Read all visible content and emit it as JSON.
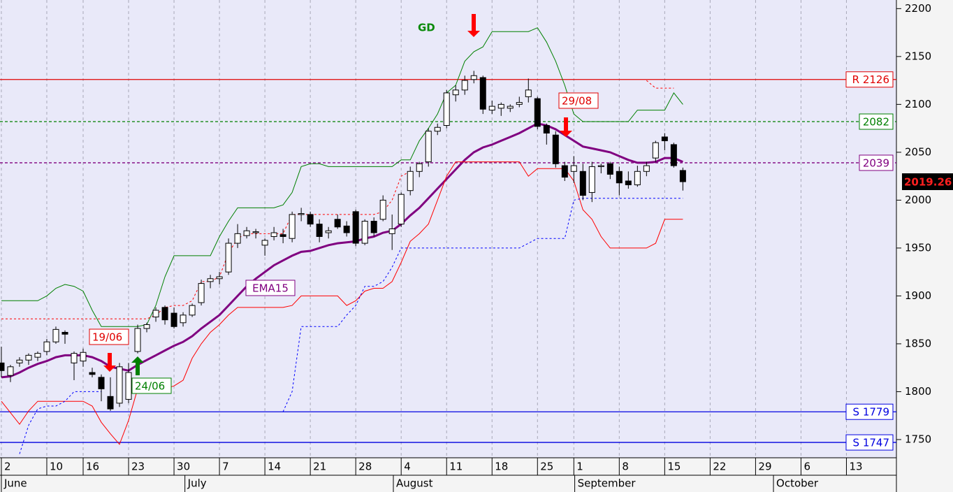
{
  "chart_data": {
    "type": "candlestick",
    "open": [
      1830,
      1817,
      1830,
      1833,
      1836,
      1842,
      1852,
      1862,
      1830,
      1832,
      1820,
      1815,
      1795,
      1788,
      1792,
      1842,
      1866,
      1878,
      1888,
      1882,
      1872,
      1880,
      1893,
      1915,
      1918,
      1925,
      1955,
      1963,
      1966,
      1953,
      1962,
      1964,
      1960,
      1985,
      1985,
      1975,
      1966,
      1980,
      1973,
      1988,
      1955,
      1978,
      1980,
      1965,
      1975,
      2010,
      2030,
      2040,
      2072,
      2078,
      2110,
      2115,
      2126,
      2128,
      2094,
      2096,
      2096,
      2100,
      2108,
      2106,
      2078,
      2068,
      2036,
      2030,
      2030,
      2008,
      2035,
      2038,
      2030,
      2020,
      2016,
      2030,
      2044,
      2066,
      2058,
      2031
    ],
    "high": [
      1847,
      1828,
      1836,
      1840,
      1842,
      1855,
      1868,
      1864,
      1842,
      1845,
      1825,
      1818,
      1815,
      1830,
      1830,
      1870,
      1872,
      1888,
      1890,
      1888,
      1883,
      1892,
      1917,
      1922,
      1925,
      1960,
      1975,
      1972,
      1970,
      1960,
      1972,
      1970,
      1988,
      1992,
      1988,
      1980,
      1972,
      1985,
      1978,
      1990,
      1980,
      1982,
      2005,
      1985,
      2008,
      2035,
      2040,
      2075,
      2080,
      2115,
      2120,
      2130,
      2135,
      2130,
      2104,
      2102,
      2100,
      2108,
      2127,
      2108,
      2080,
      2072,
      2040,
      2046,
      2038,
      2040,
      2038,
      2040,
      2035,
      2030,
      2036,
      2040,
      2062,
      2070,
      2060,
      2034
    ],
    "low": [
      1815,
      1810,
      1826,
      1828,
      1832,
      1838,
      1850,
      1850,
      1812,
      1826,
      1815,
      1790,
      1780,
      1784,
      1788,
      1840,
      1862,
      1873,
      1870,
      1866,
      1868,
      1878,
      1890,
      1908,
      1912,
      1922,
      1950,
      1960,
      1960,
      1942,
      1958,
      1955,
      1956,
      1978,
      1972,
      1956,
      1960,
      1970,
      1962,
      1952,
      1953,
      1962,
      1978,
      1948,
      1972,
      2005,
      2024,
      2035,
      2068,
      2075,
      2103,
      2110,
      2122,
      2090,
      2090,
      2088,
      2092,
      2097,
      2102,
      2074,
      2058,
      2034,
      2020,
      2018,
      2000,
      1998,
      2028,
      2022,
      2005,
      2012,
      2014,
      2025,
      2040,
      2052,
      2034,
      2010
    ],
    "close": [
      1822,
      1826,
      1833,
      1838,
      1840,
      1852,
      1865,
      1860,
      1840,
      1841,
      1818,
      1803,
      1782,
      1826,
      1820,
      1866,
      1870,
      1885,
      1875,
      1868,
      1880,
      1890,
      1913,
      1918,
      1920,
      1955,
      1965,
      1968,
      1967,
      1958,
      1966,
      1962,
      1985,
      1986,
      1975,
      1962,
      1968,
      1972,
      1966,
      1955,
      1978,
      1966,
      2000,
      1970,
      2006,
      2030,
      2038,
      2072,
      2076,
      2112,
      2115,
      2125,
      2130,
      2095,
      2098,
      2100,
      2098,
      2102,
      2115,
      2077,
      2070,
      2038,
      2024,
      2036,
      2005,
      2035,
      2036,
      2027,
      2018,
      2016,
      2030,
      2036,
      2060,
      2062,
      2036,
      2019.26
    ],
    "series": [
      {
        "name": "EMA15",
        "color": "#800080",
        "style": "solid",
        "width": 3,
        "values": [
          1815,
          1816,
          1820,
          1825,
          1829,
          1832,
          1836,
          1838,
          1838,
          1838,
          1836,
          1832,
          1826,
          1824,
          1822,
          1828,
          1833,
          1838,
          1843,
          1848,
          1852,
          1858,
          1866,
          1873,
          1880,
          1890,
          1900,
          1910,
          1918,
          1925,
          1932,
          1937,
          1942,
          1946,
          1947,
          1950,
          1953,
          1955,
          1956,
          1957,
          1960,
          1962,
          1966,
          1968,
          1975,
          1984,
          1992,
          2002,
          2012,
          2022,
          2032,
          2042,
          2050,
          2055,
          2058,
          2062,
          2066,
          2070,
          2075,
          2080,
          2078,
          2074,
          2068,
          2062,
          2056,
          2054,
          2052,
          2050,
          2046,
          2042,
          2039,
          2039,
          2040,
          2044,
          2044,
          2040
        ]
      },
      {
        "color": "#008000",
        "style": "solid",
        "width": 1,
        "values": [
          1895,
          1895,
          1895,
          1895,
          1895,
          1900,
          1908,
          1912,
          1910,
          1905,
          1885,
          1868,
          1868,
          1868,
          1868,
          1868,
          1870,
          1890,
          1920,
          1942,
          1942,
          1942,
          1942,
          1942,
          1962,
          1978,
          1992,
          1992,
          1992,
          1992,
          1992,
          1995,
          2008,
          2035,
          2038,
          2038,
          2035,
          2035,
          2035,
          2035,
          2035,
          2035,
          2035,
          2035,
          2042,
          2042,
          2062,
          2075,
          2090,
          2112,
          2120,
          2145,
          2155,
          2160,
          2176,
          2176,
          2176,
          2176,
          2176,
          2180,
          2165,
          2145,
          2120,
          2090,
          2082,
          2082,
          2082,
          2082,
          2082,
          2082,
          2094,
          2094,
          2094,
          2094,
          2112,
          2100
        ]
      },
      {
        "color": "#ff0000",
        "style": "solid",
        "width": 1,
        "values": [
          1790,
          1778,
          1766,
          1780,
          1790,
          1790,
          1790,
          1790,
          1790,
          1790,
          1785,
          1768,
          1756,
          1745,
          1770,
          1803,
          1803,
          1803,
          1803,
          1806,
          1812,
          1835,
          1850,
          1862,
          1870,
          1880,
          1888,
          1888,
          1888,
          1888,
          1888,
          1888,
          1890,
          1900,
          1900,
          1900,
          1900,
          1900,
          1890,
          1895,
          1905,
          1908,
          1908,
          1915,
          1935,
          1957,
          1965,
          1975,
          2000,
          2025,
          2040,
          2040,
          2040,
          2040,
          2040,
          2040,
          2040,
          2040,
          2025,
          2033,
          2033,
          2033,
          2033,
          2020,
          1990,
          1980,
          1962,
          1950,
          1950,
          1950,
          1950,
          1950,
          1955,
          1980,
          1980,
          1980
        ]
      },
      {
        "color": "#ff0000",
        "style": "dashed",
        "width": 1,
        "values": [
          1876,
          1876,
          1876,
          1876,
          1876,
          1876,
          1876,
          1876,
          1876,
          1876,
          1876,
          1876,
          1876,
          1876,
          1876,
          1876,
          1876,
          1880,
          1888,
          1890,
          1890,
          1895,
          1915,
          1915,
          1920,
          1945,
          1960,
          1965,
          1965,
          1965,
          1965,
          1965,
          1985,
          1985,
          1985,
          1985,
          1985,
          1985,
          1985,
          1985,
          1985,
          1985,
          1988,
          2000,
          2025,
          2030,
          null,
          null,
          null,
          null,
          null,
          null,
          null,
          null,
          null,
          null,
          null,
          null,
          null,
          null,
          null,
          null,
          null,
          null,
          null,
          null,
          null,
          null,
          null,
          null,
          null,
          2125,
          2117,
          2117,
          2117,
          null
        ]
      },
      {
        "color": "#0000ff",
        "style": "dashed",
        "width": 1,
        "values": [
          null,
          null,
          1735,
          1765,
          1782,
          1785,
          1785,
          1790,
          1800,
          1800,
          1800,
          1800,
          null,
          null,
          null,
          null,
          null,
          null,
          null,
          null,
          null,
          null,
          null,
          null,
          null,
          null,
          null,
          null,
          null,
          null,
          null,
          1779,
          1800,
          1868,
          1868,
          1868,
          1868,
          1868,
          1880,
          1890,
          1910,
          1910,
          1915,
          1930,
          1950,
          1950,
          1950,
          1950,
          1950,
          1950,
          1950,
          1950,
          1950,
          1950,
          1950,
          1950,
          1950,
          1950,
          1955,
          1960,
          1960,
          1960,
          1960,
          2000,
          2002,
          2002,
          2002,
          2002,
          2002,
          2002,
          2002,
          2002,
          2002,
          2002,
          2002,
          2002
        ]
      }
    ],
    "levels": [
      {
        "value": 2126,
        "label": "R 2126",
        "color": "#e00000",
        "style": "solid"
      },
      {
        "value": 2082,
        "label": "2082",
        "color": "#008000",
        "style": "dashed"
      },
      {
        "value": 2039,
        "label": "2039",
        "color": "#800080",
        "style": "dashed"
      },
      {
        "value": 1779,
        "label": "S 1779",
        "color": "#0000e0",
        "style": "solid"
      },
      {
        "value": 1747,
        "label": "S 1747",
        "color": "#0000e0",
        "style": "solid"
      }
    ],
    "annotations": [
      "GD",
      "19/06",
      "24/06",
      "29/08"
    ],
    "ylim": [
      1731,
      2209
    ],
    "yticks": [
      1750,
      1800,
      1850,
      1900,
      1950,
      2000,
      2050,
      2100,
      2150,
      2200
    ],
    "xlim": [
      -0.15,
      98.5
    ],
    "xticks": [
      {
        "value": 0,
        "label": "2"
      },
      {
        "value": 5,
        "label": "10"
      },
      {
        "value": 9,
        "label": "16"
      },
      {
        "value": 14,
        "label": "23"
      },
      {
        "value": 19,
        "label": "30"
      },
      {
        "value": 24,
        "label": "7"
      },
      {
        "value": 29,
        "label": "14"
      },
      {
        "value": 34,
        "label": "21"
      },
      {
        "value": 39,
        "label": "28"
      },
      {
        "value": 44,
        "label": "4"
      },
      {
        "value": 49,
        "label": "11"
      },
      {
        "value": 54,
        "label": "18"
      },
      {
        "value": 59,
        "label": "25"
      },
      {
        "value": 63,
        "label": "1"
      },
      {
        "value": 68,
        "label": "8"
      },
      {
        "value": 73,
        "label": "15"
      },
      {
        "value": 78,
        "label": "22"
      },
      {
        "value": 83,
        "label": "29"
      },
      {
        "value": 88,
        "label": "6"
      },
      {
        "value": 93,
        "label": "13"
      }
    ],
    "month_ticks": [
      {
        "value": 0,
        "label": "June"
      },
      {
        "value": 20.2,
        "label": "July"
      },
      {
        "value": 43.14,
        "label": "August"
      },
      {
        "value": 63.1,
        "label": "September"
      },
      {
        "value": 84.97,
        "label": "October"
      }
    ],
    "grid": true
  }
}
